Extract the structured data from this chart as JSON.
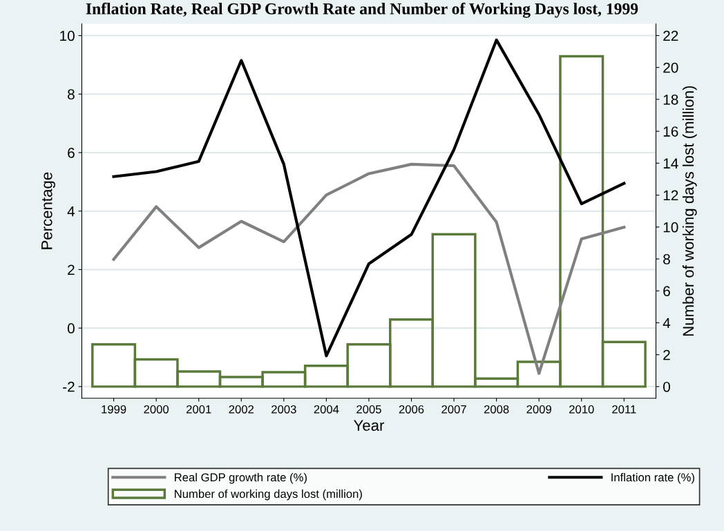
{
  "chart_data": {
    "type": "line",
    "title": "Inflation Rate, Real GDP Growth Rate and Number of Working Days lost, 1999",
    "categories": [
      "1999",
      "2000",
      "2001",
      "2002",
      "2003",
      "2004",
      "2005",
      "2006",
      "2007",
      "2008",
      "2009",
      "2010",
      "2011"
    ],
    "series": [
      {
        "name": "Real GDP growth rate (%)",
        "color": "#808080",
        "values": [
          2.35,
          4.15,
          2.75,
          3.65,
          2.95,
          4.55,
          5.28,
          5.6,
          5.55,
          3.62,
          -1.55,
          3.05,
          3.45
        ]
      },
      {
        "name": "Inflation rate (%)",
        "color": "#000000",
        "values": [
          5.18,
          5.35,
          5.7,
          9.15,
          5.6,
          -0.95,
          2.2,
          3.2,
          6.1,
          9.85,
          7.3,
          4.25,
          4.95
        ]
      },
      {
        "name": "Number of working days lost (million)",
        "type": "bar",
        "axis": "y2",
        "color": "#5a7a3a",
        "values": [
          2.65,
          1.7,
          0.95,
          0.6,
          0.9,
          1.3,
          2.65,
          4.2,
          9.55,
          0.5,
          1.55,
          20.7,
          2.8
        ]
      }
    ],
    "xlabel": "Year",
    "ylabel": "Percentage",
    "y2label": "Number of working days lost (million)",
    "ylim": [
      -2.4,
      10.4
    ],
    "yticks": [
      -2,
      0,
      2,
      4,
      6,
      8,
      10
    ],
    "y2lim": [
      -0.73,
      22.73
    ],
    "y2ticks": [
      0,
      2,
      4,
      6,
      8,
      10,
      12,
      14,
      16,
      18,
      20,
      22
    ],
    "grid": "y",
    "legend": "bottom",
    "marker": "none",
    "line_style": "solid"
  }
}
